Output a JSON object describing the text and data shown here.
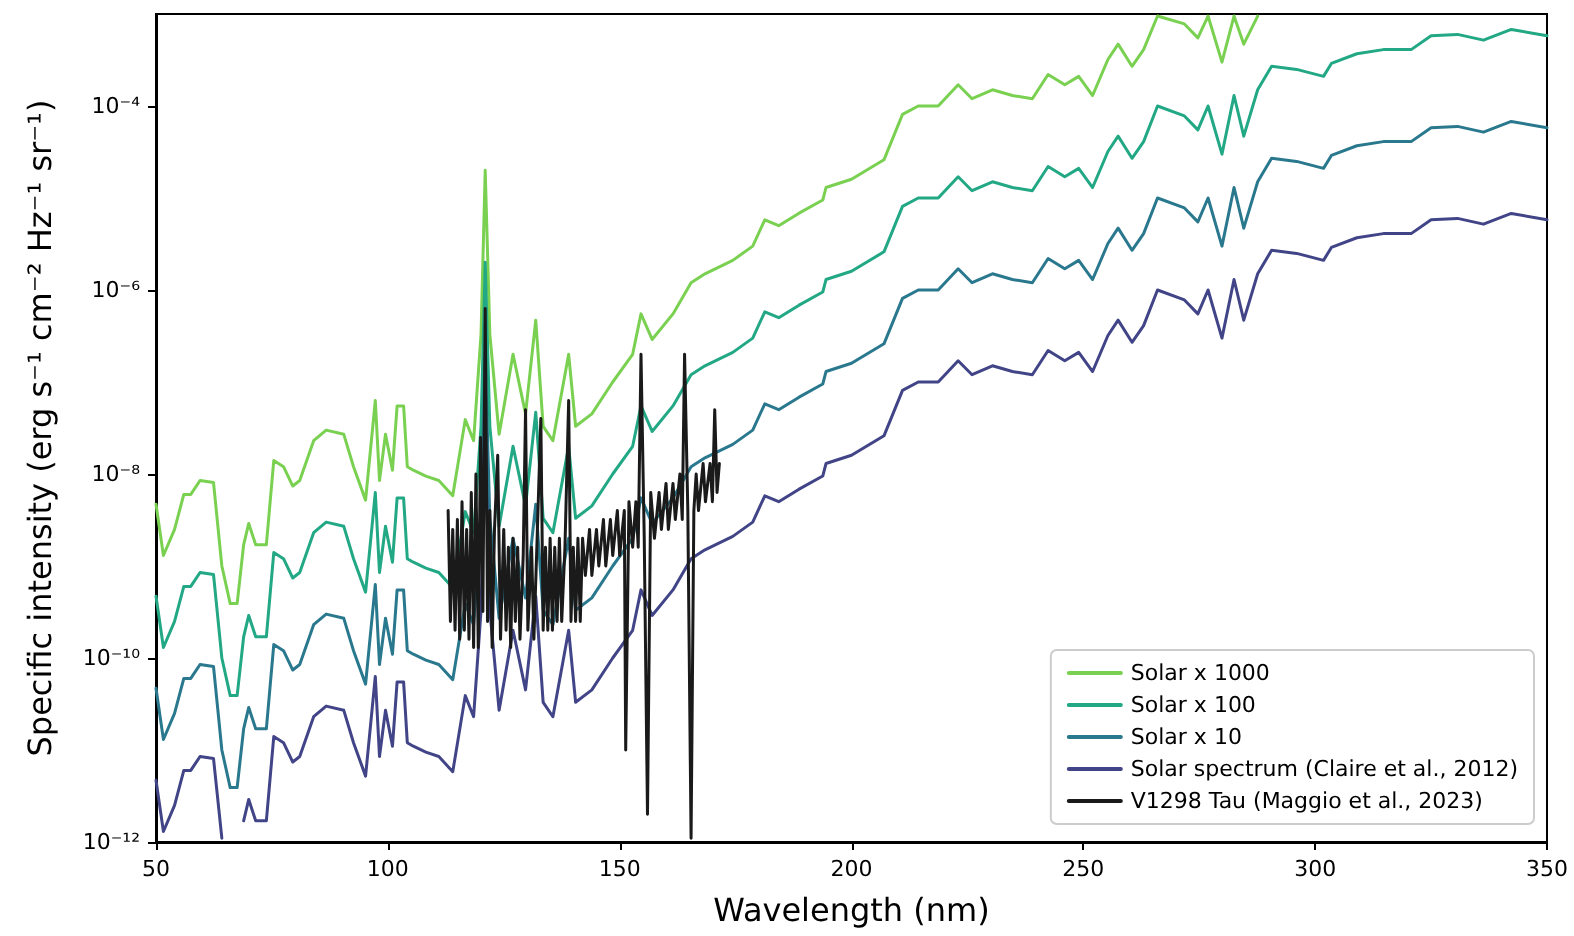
{
  "chart_data": {
    "type": "line",
    "xlabel": "Wavelength (nm)",
    "ylabel": "Specific intensity (erg s⁻¹ cm⁻² Hz⁻¹ sr⁻¹)",
    "log": "y",
    "xlim": [
      50,
      350
    ],
    "xticks": [
      50,
      100,
      150,
      200,
      250,
      300,
      350
    ],
    "ylim": [
      1e-12,
      0.001
    ],
    "yticks": [
      {
        "value": 1e-12,
        "label": "10⁻¹²"
      },
      {
        "value": 1e-10,
        "label": "10⁻¹⁰"
      },
      {
        "value": 1e-08,
        "label": "10⁻⁸"
      },
      {
        "value": 1e-06,
        "label": "10⁻⁶"
      },
      {
        "value": 0.0001,
        "label": "10⁻⁴"
      }
    ],
    "grid": false,
    "legend": "bottom right",
    "marker": "none",
    "line_style": "solid",
    "x": [
      50,
      51.6,
      54,
      56,
      57.5,
      59.5,
      62.4,
      64.2,
      66,
      67.5,
      68.9,
      70,
      71.5,
      73.8,
      75.4,
      77.5,
      79.5,
      81,
      84,
      86.7,
      90.5,
      92.6,
      95.2,
      97.3,
      98.2,
      99.5,
      101,
      102,
      103.4,
      104.2,
      105.5,
      108.2,
      111,
      114,
      116.7,
      118.5,
      120.1,
      121,
      122,
      124,
      127,
      129.7,
      131.9,
      133.5,
      135.6,
      139,
      140.5,
      144,
      148.5,
      152.8,
      154.6,
      157,
      161.5,
      165.4,
      168.4,
      174.4,
      178.7,
      181.3,
      184.3,
      188.6,
      193.8,
      194.5,
      200,
      207,
      211,
      214.4,
      218.7,
      223,
      226,
      230.4,
      234.7,
      239,
      242.4,
      246,
      249,
      252,
      255.3,
      257.5,
      260.5,
      263,
      266,
      271.8,
      274.7,
      276.9,
      279.9,
      282.5,
      284.6,
      287.6,
      290.6,
      296,
      301.8,
      303.5,
      309,
      314.7,
      320.7,
      325,
      330.7,
      336.3,
      342.3,
      350
    ],
    "series": [
      {
        "name": "Solar x 1000",
        "color": "#7ad151",
        "values": [
          4.7e-09,
          1.3e-09,
          2.5e-09,
          6e-09,
          6e-09,
          8.5e-09,
          8.1e-09,
          1e-09,
          3.9e-10,
          3.9e-10,
          1.7e-09,
          2.9e-09,
          1.7e-09,
          1.7e-09,
          1.4e-08,
          1.2e-08,
          7.4e-09,
          8.5e-09,
          2.3e-08,
          3e-08,
          2.7e-08,
          1.2e-08,
          5.2e-09,
          6.3e-08,
          8.5e-09,
          2.7e-08,
          1.1e-08,
          5.5e-08,
          5.5e-08,
          1.2e-08,
          1.1e-08,
          9.5e-09,
          8.5e-09,
          5.8e-09,
          3.9e-08,
          2.3e-08,
          3.3e-07,
          2e-05,
          3.3e-07,
          2.7e-08,
          2e-07,
          4.5e-08,
          4.7e-07,
          3.3e-08,
          2.3e-08,
          2e-07,
          3.3e-08,
          4.5e-08,
          1e-07,
          2e-07,
          5.5e-07,
          2.9e-07,
          5.5e-07,
          1.2e-06,
          1.5e-06,
          2.1e-06,
          3e-06,
          5.8e-06,
          5e-06,
          6.8e-06,
          9.5e-06,
          1.3e-05,
          1.6e-05,
          2.6e-05,
          8.1e-05,
          0.0001,
          0.0001,
          0.00017,
          0.00012,
          0.00015,
          0.00013,
          0.00012,
          0.00022,
          0.00017,
          0.00021,
          0.00013,
          0.00032,
          0.00047,
          0.00027,
          0.00041,
          0.00095,
          0.00078,
          0.00055,
          0.00095,
          0.0003,
          0.00095,
          0.00047,
          0.00095,
          null,
          null,
          null,
          null,
          null,
          null,
          null,
          null,
          null,
          null,
          null,
          null
        ]
      },
      {
        "name": "Solar x 100",
        "color": "#22a884",
        "values": [
          4.7e-10,
          1.3e-10,
          2.5e-10,
          6e-10,
          6e-10,
          8.5e-10,
          8.1e-10,
          1e-10,
          3.9e-11,
          3.9e-11,
          1.7e-10,
          2.9e-10,
          1.7e-10,
          1.7e-10,
          1.4e-09,
          1.2e-09,
          7.4e-10,
          8.5e-10,
          2.3e-09,
          3e-09,
          2.7e-09,
          1.2e-09,
          5.2e-10,
          6.3e-09,
          8.5e-10,
          2.7e-09,
          1.1e-09,
          5.5e-09,
          5.5e-09,
          1.2e-09,
          1.1e-09,
          9.5e-10,
          8.5e-10,
          5.8e-10,
          3.9e-09,
          2.3e-09,
          3.3e-08,
          2e-06,
          3.3e-08,
          2.7e-09,
          2e-08,
          4.5e-09,
          4.7e-08,
          3.3e-09,
          2.3e-09,
          2e-08,
          3.3e-09,
          4.5e-09,
          1e-08,
          2e-08,
          5.5e-08,
          2.9e-08,
          5.5e-08,
          1.2e-07,
          1.5e-07,
          2.1e-07,
          3e-07,
          5.8e-07,
          5e-07,
          6.8e-07,
          9.5e-07,
          1.3e-06,
          1.6e-06,
          2.6e-06,
          8.1e-06,
          1e-05,
          1e-05,
          1.7e-05,
          1.2e-05,
          1.5e-05,
          1.3e-05,
          1.2e-05,
          2.2e-05,
          1.7e-05,
          2.1e-05,
          1.3e-05,
          3.2e-05,
          4.7e-05,
          2.7e-05,
          4.1e-05,
          0.0001,
          7.8e-05,
          5.5e-05,
          0.0001,
          3e-05,
          0.00013,
          4.7e-05,
          0.00015,
          0.00027,
          0.00025,
          0.00021,
          0.00029,
          0.00037,
          0.00041,
          0.00041,
          0.00058,
          0.0006,
          0.00052,
          0.00068,
          0.00058
        ]
      },
      {
        "name": "Solar x 10",
        "color": "#2a788e",
        "values": [
          4.7e-11,
          1.3e-11,
          2.5e-11,
          6e-11,
          6e-11,
          8.5e-11,
          8.1e-11,
          1e-11,
          3.9e-12,
          3.9e-12,
          1.7e-11,
          2.9e-11,
          1.7e-11,
          1.7e-11,
          1.4e-10,
          1.2e-10,
          7.4e-11,
          8.5e-11,
          2.3e-10,
          3e-10,
          2.7e-10,
          1.2e-10,
          5.2e-11,
          6.3e-10,
          8.5e-11,
          2.7e-10,
          1.1e-10,
          5.5e-10,
          5.5e-10,
          1.2e-10,
          1.1e-10,
          9.5e-11,
          8.5e-11,
          5.8e-11,
          3.9e-10,
          2.3e-10,
          3.3e-09,
          2e-07,
          3.3e-09,
          2.7e-10,
          2e-09,
          4.5e-10,
          4.7e-09,
          3.3e-10,
          2.3e-10,
          2e-09,
          3.3e-10,
          4.5e-10,
          1e-09,
          2e-09,
          5.5e-09,
          2.9e-09,
          5.5e-09,
          1.2e-08,
          1.5e-08,
          2.1e-08,
          3e-08,
          5.8e-08,
          5e-08,
          6.8e-08,
          9.5e-08,
          1.3e-07,
          1.6e-07,
          2.6e-07,
          8.1e-07,
          1e-06,
          1e-06,
          1.7e-06,
          1.2e-06,
          1.5e-06,
          1.3e-06,
          1.2e-06,
          2.2e-06,
          1.7e-06,
          2.1e-06,
          1.3e-06,
          3.2e-06,
          4.7e-06,
          2.7e-06,
          4.1e-06,
          1e-05,
          7.8e-06,
          5.5e-06,
          1e-05,
          3e-06,
          1.3e-05,
          4.7e-06,
          1.5e-05,
          2.7e-05,
          2.5e-05,
          2.1e-05,
          2.9e-05,
          3.7e-05,
          4.1e-05,
          4.1e-05,
          5.8e-05,
          6e-05,
          5.2e-05,
          6.8e-05,
          5.8e-05
        ]
      },
      {
        "name": "Solar spectrum (Claire et al., 2012)",
        "color": "#414487",
        "values": [
          4.7e-12,
          1.3e-12,
          2.5e-12,
          6e-12,
          6e-12,
          8.5e-12,
          8.1e-12,
          1.1e-12,
          null,
          null,
          1.7e-12,
          2.9e-12,
          1.7e-12,
          1.7e-12,
          1.4e-11,
          1.2e-11,
          7.4e-12,
          8.5e-12,
          2.3e-11,
          3e-11,
          2.7e-11,
          1.2e-11,
          5.2e-12,
          6.3e-11,
          8.5e-12,
          2.7e-11,
          1.1e-11,
          5.5e-11,
          5.5e-11,
          1.2e-11,
          1.1e-11,
          9.5e-12,
          8.5e-12,
          5.8e-12,
          3.9e-11,
          2.3e-11,
          3.3e-10,
          2e-08,
          3.3e-10,
          2.7e-11,
          2e-10,
          4.5e-11,
          4.7e-10,
          3.3e-11,
          2.3e-11,
          2e-10,
          3.3e-11,
          4.5e-11,
          1e-10,
          2e-10,
          5.5e-10,
          2.9e-10,
          5.5e-10,
          1.2e-09,
          1.5e-09,
          2.1e-09,
          3e-09,
          5.8e-09,
          5e-09,
          6.8e-09,
          9.5e-09,
          1.3e-08,
          1.6e-08,
          2.6e-08,
          8.1e-08,
          1e-07,
          1e-07,
          1.7e-07,
          1.2e-07,
          1.5e-07,
          1.3e-07,
          1.2e-07,
          2.2e-07,
          1.7e-07,
          2.1e-07,
          1.3e-07,
          3.2e-07,
          4.7e-07,
          2.7e-07,
          4.1e-07,
          1e-06,
          7.8e-07,
          5.5e-07,
          1e-06,
          3e-07,
          1.3e-06,
          4.7e-07,
          1.5e-06,
          2.7e-06,
          2.5e-06,
          2.1e-06,
          2.9e-06,
          3.7e-06,
          4.1e-06,
          4.1e-06,
          5.8e-06,
          6e-06,
          5.2e-06,
          6.8e-06,
          5.8e-06
        ]
      },
      {
        "name": "V1298 Tau (Maggio et al., 2023)",
        "color": "#1a1a1a",
        "x": [
          113,
          113.5,
          114,
          114.5,
          115,
          115.5,
          116,
          116.5,
          117,
          117.5,
          118,
          118.5,
          119,
          119.5,
          120,
          120.5,
          121,
          121.5,
          122,
          122.5,
          123,
          123.7,
          124.3,
          125,
          125.5,
          126,
          126.5,
          127,
          127.5,
          128,
          128.5,
          129.2,
          129.7,
          130.2,
          131,
          131.5,
          132.2,
          133,
          133.5,
          134,
          134.5,
          135,
          135.5,
          136,
          136.5,
          137,
          137.5,
          138.2,
          139,
          139.5,
          140,
          140.5,
          141,
          141.5,
          142,
          142.6,
          143.5,
          144,
          145,
          145.5,
          146.5,
          147,
          148,
          148.5,
          149.5,
          150,
          151,
          151.3,
          152,
          152.8,
          153.5,
          154,
          154.6,
          155.3,
          156,
          156.7,
          157.5,
          158.5,
          159,
          160,
          160.5,
          161.5,
          162,
          163,
          163.5,
          164,
          164.7,
          165.4,
          166,
          166.5,
          167,
          168,
          168.5,
          169.5,
          170,
          170.5,
          171,
          171.5
        ],
        "values": [
          4e-09,
          2.5e-10,
          2.5e-09,
          2e-10,
          3.2e-09,
          1.6e-10,
          5e-09,
          2e-10,
          2.5e-09,
          1.6e-10,
          6.3e-09,
          1.3e-10,
          1e-08,
          1.3e-10,
          2.5e-08,
          3.2e-10,
          6.3e-07,
          2.5e-10,
          4e-09,
          1.3e-10,
          2.5e-09,
          1.6e-08,
          1.6e-10,
          2.5e-09,
          2e-10,
          1.6e-09,
          1.3e-10,
          2e-09,
          2.5e-10,
          1.6e-09,
          1.6e-10,
          1.3e-09,
          5e-08,
          2e-10,
          1.6e-09,
          1.6e-10,
          2e-09,
          4e-08,
          2e-10,
          1.6e-09,
          2e-10,
          2e-09,
          2e-10,
          1.6e-09,
          2.5e-10,
          2e-09,
          2.5e-10,
          1.6e-09,
          6.3e-08,
          2.5e-10,
          1.6e-09,
          2.5e-10,
          2e-09,
          2.5e-10,
          2e-09,
          7.9e-10,
          2.5e-09,
          7.9e-10,
          2.5e-09,
          1e-09,
          3.2e-09,
          1e-09,
          3.2e-09,
          1.3e-09,
          4e-09,
          1.3e-09,
          4e-09,
          1e-11,
          5e-09,
          1.6e-09,
          5e-09,
          1.6e-09,
          2e-07,
          2e-09,
          2e-12,
          6.3e-09,
          2e-09,
          6.3e-09,
          2.5e-09,
          7.9e-09,
          2.5e-09,
          7.9e-09,
          3.2e-09,
          1e-08,
          3.2e-09,
          2e-07,
          4e-09,
          1.1e-12,
          4e-09,
          1e-08,
          4e-09,
          1.3e-08,
          5e-09,
          1.3e-08,
          5e-09,
          5e-08,
          6.3e-09,
          1.3e-08
        ]
      }
    ]
  }
}
